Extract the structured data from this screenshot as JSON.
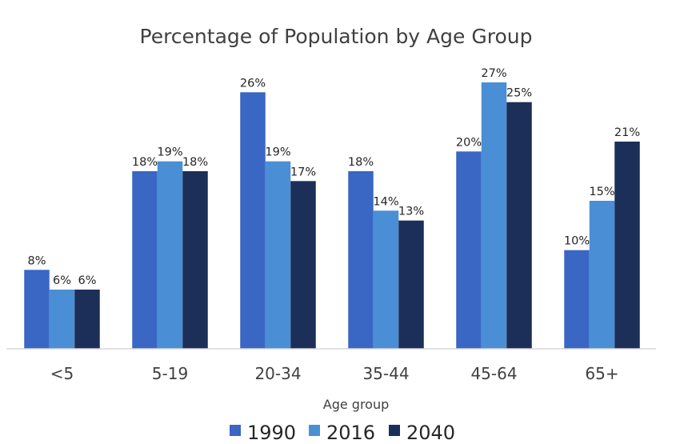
{
  "chart_data": {
    "type": "bar",
    "title": "Percentage of Population by Age Group",
    "xlabel": "Age group",
    "ylabel": "",
    "categories": [
      "<5",
      "5-19",
      "20-34",
      "35-44",
      "45-64",
      "65+"
    ],
    "series": [
      {
        "name": "1990",
        "color": "#3a66c4",
        "values": [
          8,
          18,
          26,
          18,
          20,
          10
        ],
        "labels": [
          "8%",
          "18%",
          "26%",
          "18%",
          "20%",
          "10%"
        ]
      },
      {
        "name": "2016",
        "color": "#4a8fd6",
        "values": [
          6,
          19,
          19,
          14,
          27,
          15
        ],
        "labels": [
          "6%",
          "19%",
          "19%",
          "14%",
          "27%",
          "15%"
        ]
      },
      {
        "name": "2040",
        "color": "#1c2f59",
        "values": [
          6,
          18,
          17,
          13,
          25,
          21
        ],
        "labels": [
          "6%",
          "18%",
          "17%",
          "13%",
          "25%",
          "21%"
        ]
      }
    ],
    "ylim": [
      0,
      27
    ],
    "grid": false,
    "legend": "bottom"
  }
}
